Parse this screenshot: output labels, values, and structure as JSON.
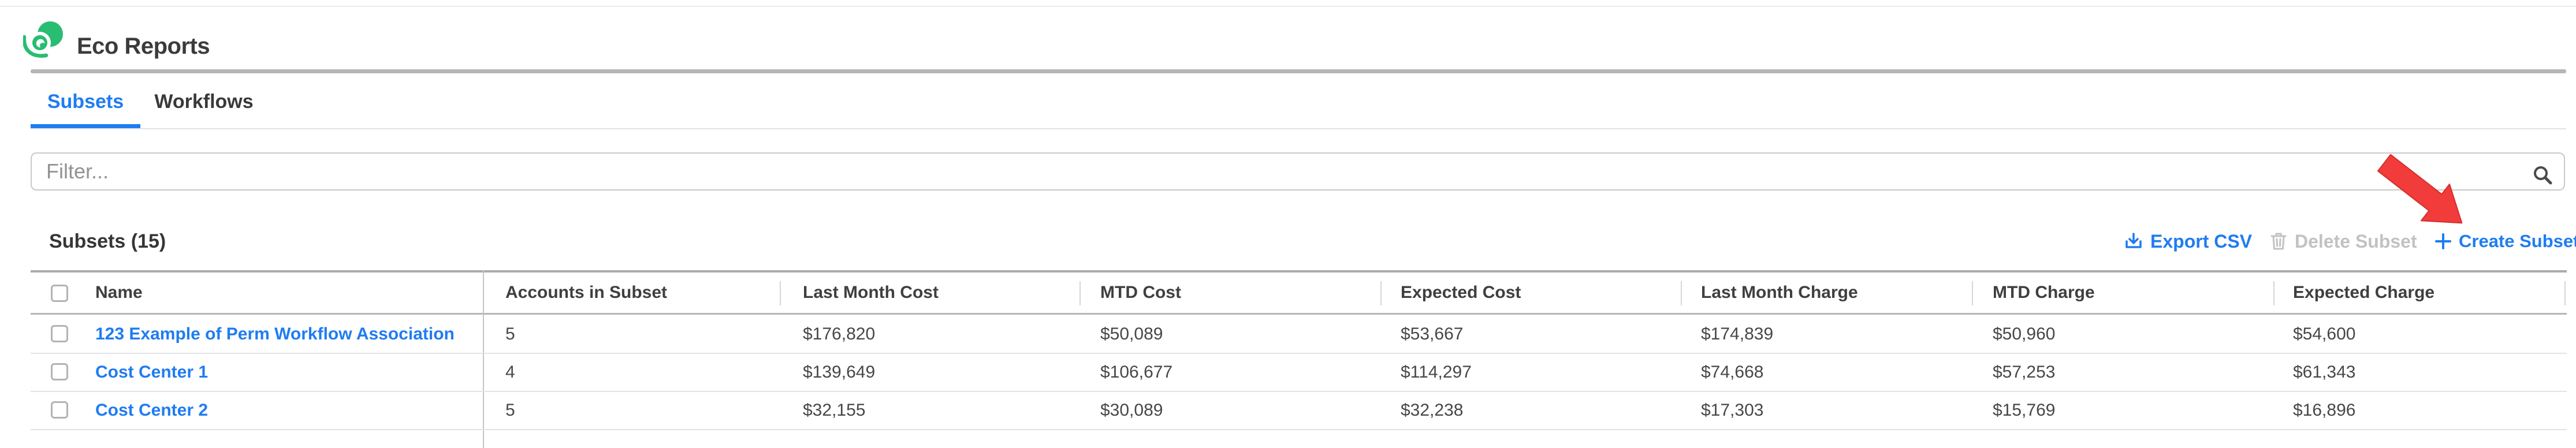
{
  "app": {
    "title": "Eco Reports",
    "logo": "eco-green-swirl"
  },
  "colors": {
    "accent_blue": "#1f7cf1",
    "brand_green": "#29bd72",
    "annotation_red": "#f23b3b",
    "disabled_gray": "#c2c2c2"
  },
  "tabs": [
    {
      "label": "Subsets",
      "active": true
    },
    {
      "label": "Workflows",
      "active": false
    }
  ],
  "filter": {
    "placeholder": "Filter...",
    "value": ""
  },
  "section": {
    "title": "Subsets (15)"
  },
  "actions": {
    "export_label": "Export CSV",
    "delete_label": "Delete Subset",
    "create_label": "Create Subset"
  },
  "table": {
    "columns": [
      "Name",
      "Accounts in Subset",
      "Last Month Cost",
      "MTD Cost",
      "Expected Cost",
      "Last Month Charge",
      "MTD Charge",
      "Expected Charge"
    ],
    "rows": [
      {
        "cells": [
          "123 Example of Perm Workflow Association",
          "5",
          "$176,820",
          "$50,089",
          "$53,667",
          "$174,839",
          "$50,960",
          "$54,600"
        ]
      },
      {
        "cells": [
          "Cost Center 1",
          "4",
          "$139,649",
          "$106,677",
          "$114,297",
          "$74,668",
          "$57,253",
          "$61,343"
        ]
      },
      {
        "cells": [
          "Cost Center 2",
          "5",
          "$32,155",
          "$30,089",
          "$32,238",
          "$17,303",
          "$15,769",
          "$16,896"
        ]
      }
    ]
  },
  "annotation": {
    "arrow_target": "Create Subset"
  }
}
